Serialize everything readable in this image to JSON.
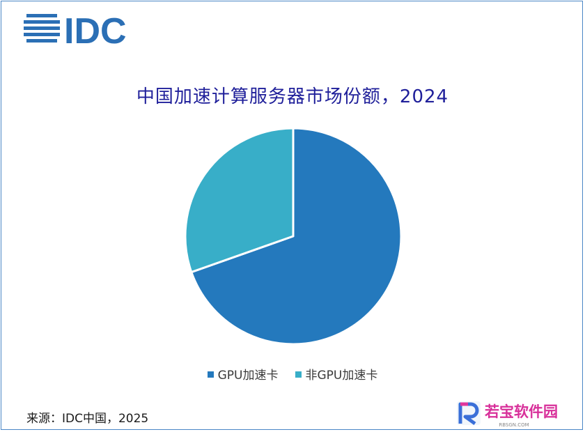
{
  "logo": {
    "text": "IDC",
    "color": "#2b6fb5"
  },
  "chart_data": {
    "type": "pie",
    "title": "中国加速计算服务器市场份额，2024",
    "categories": [
      "GPU加速卡",
      "非GPU加速卡"
    ],
    "values": [
      69.6,
      30.4
    ],
    "colors": [
      "#2479bd",
      "#38aec8"
    ],
    "legend_position": "bottom",
    "start_angle": "12 o'clock",
    "direction": "clockwise"
  },
  "source": "来源：IDC中国，2025",
  "watermark": {
    "brand": "若宝软件园",
    "url": "RBSGN.COM",
    "icon": "rb-logo-icon"
  }
}
